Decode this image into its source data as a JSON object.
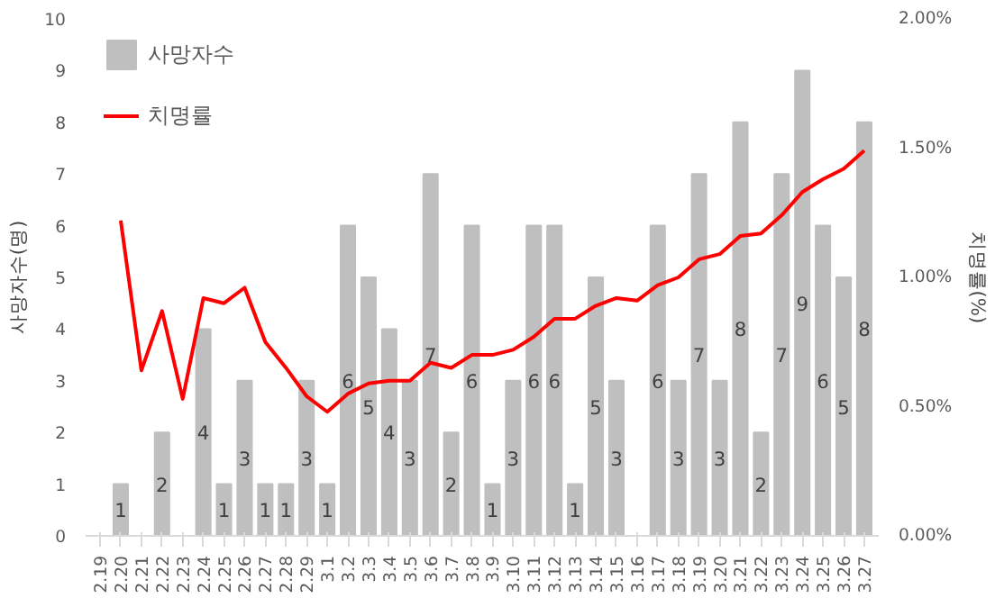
{
  "chart_data": {
    "type": "bar",
    "ylabel": "사망자수(명)",
    "y2label": "치명률(%)",
    "categories": [
      "2.19",
      "2.20",
      "2.21",
      "2.22",
      "2.23",
      "2.24",
      "2.25",
      "2.26",
      "2.27",
      "2.28",
      "2.29",
      "3.1",
      "3.2",
      "3.3",
      "3.4",
      "3.5",
      "3.6",
      "3.7",
      "3.8",
      "3.9",
      "3.10",
      "3.11",
      "3.12",
      "3.13",
      "3.14",
      "3.15",
      "3.16",
      "3.17",
      "3.18",
      "3.19",
      "3.20",
      "3.21",
      "3.22",
      "3.23",
      "3.24",
      "3.25",
      "3.26",
      "3.27"
    ],
    "series": [
      {
        "name": "사망자수",
        "color": "#bfbfbf",
        "values": [
          0,
          1,
          0,
          2,
          0,
          4,
          1,
          3,
          1,
          1,
          3,
          1,
          6,
          5,
          4,
          3,
          7,
          2,
          6,
          1,
          3,
          6,
          6,
          1,
          5,
          3,
          0,
          6,
          3,
          7,
          3,
          8,
          2,
          7,
          9,
          6,
          5,
          8
        ],
        "value_labels": [
          null,
          "1",
          null,
          "2",
          null,
          "4",
          "1",
          "3",
          "1",
          "1",
          "3",
          "1",
          "6",
          "5",
          "4",
          "3",
          "7",
          "2",
          "6",
          "1",
          "3",
          "6",
          "6",
          "1",
          "5",
          "3",
          null,
          "6",
          "3",
          "7",
          "3",
          "8",
          "2",
          "7",
          "9",
          "6",
          "5",
          "8"
        ]
      },
      {
        "name": "치명률",
        "type": "line",
        "axis": "y2",
        "color": "#ff0000",
        "values": [
          null,
          1.22,
          0.64,
          0.87,
          0.53,
          0.92,
          0.9,
          0.96,
          0.75,
          0.65,
          0.54,
          0.48,
          0.55,
          0.59,
          0.6,
          0.6,
          0.67,
          0.65,
          0.7,
          0.7,
          0.72,
          0.77,
          0.84,
          0.84,
          0.89,
          0.92,
          0.91,
          0.97,
          1.0,
          1.07,
          1.09,
          1.16,
          1.17,
          1.24,
          1.33,
          1.38,
          1.42,
          1.49
        ]
      }
    ],
    "ylim": [
      0,
      10
    ],
    "yticks": [
      0,
      1,
      2,
      3,
      4,
      5,
      6,
      7,
      8,
      9,
      10
    ],
    "y2lim": [
      0,
      2
    ],
    "y2ticks": [
      {
        "value": 0,
        "label": "0.00%"
      },
      {
        "value": 0.5,
        "label": "0.50%"
      },
      {
        "value": 1,
        "label": "1.00%"
      },
      {
        "value": 1.5,
        "label": "1.50%"
      },
      {
        "value": 2,
        "label": "2.00%"
      }
    ],
    "legend": "top left",
    "grid": false,
    "marker": "none",
    "line_style": "solid"
  }
}
